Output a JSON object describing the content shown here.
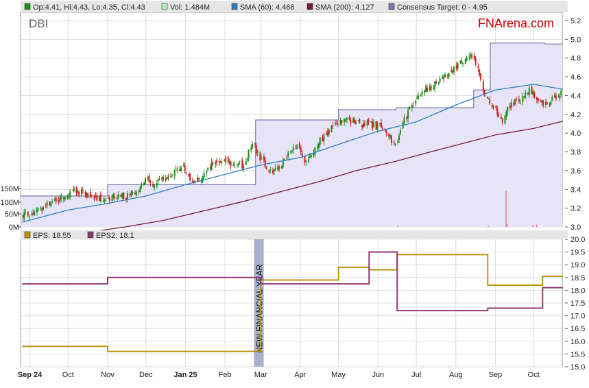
{
  "chart_data": [
    {
      "type": "candlestick",
      "ticker": "DBI",
      "brand": "FNArena.com",
      "legend": {
        "ohlc": "Op:4.41, Hi:4.43, Lo:4.35, Cl:4.43",
        "vol": "Vol: 1.484M",
        "sma60": "SMA (60): 4.468",
        "sma200": "SMA (200): 4.127",
        "target": "Consensus Target: 0 - 4.95"
      },
      "y_ticks": [
        "5.2",
        "5.0",
        "4.8",
        "4.6",
        "4.4",
        "4.2",
        "4.0",
        "3.8",
        "3.6",
        "3.4",
        "3.2",
        "3.0"
      ],
      "ylim": [
        3.0,
        5.2
      ],
      "volume_ticks": [
        "150M",
        "100M",
        "50M",
        "0M"
      ],
      "prices": [
        [
          "2024-08-26",
          3.12
        ],
        [
          "2024-09-02",
          3.15
        ],
        [
          "2024-09-09",
          3.18
        ],
        [
          "2024-09-16",
          3.23
        ],
        [
          "2024-09-23",
          3.28
        ],
        [
          "2024-09-30",
          3.34
        ],
        [
          "2024-10-07",
          3.39
        ],
        [
          "2024-10-14",
          3.37
        ],
        [
          "2024-10-21",
          3.33
        ],
        [
          "2024-10-28",
          3.31
        ],
        [
          "2024-11-04",
          3.3
        ],
        [
          "2024-11-11",
          3.31
        ],
        [
          "2024-11-18",
          3.33
        ],
        [
          "2024-11-25",
          3.37
        ],
        [
          "2024-12-02",
          3.5
        ],
        [
          "2024-12-09",
          3.45
        ],
        [
          "2024-12-16",
          3.52
        ],
        [
          "2024-12-23",
          3.58
        ],
        [
          "2024-12-30",
          3.66
        ],
        [
          "2025-01-06",
          3.52
        ],
        [
          "2025-01-13",
          3.48
        ],
        [
          "2025-01-20",
          3.63
        ],
        [
          "2025-01-27",
          3.7
        ],
        [
          "2025-02-03",
          3.72
        ],
        [
          "2025-02-10",
          3.66
        ],
        [
          "2025-02-17",
          3.66
        ],
        [
          "2025-02-24",
          3.88
        ],
        [
          "2025-03-03",
          3.7
        ],
        [
          "2025-03-10",
          3.59
        ],
        [
          "2025-03-17",
          3.65
        ],
        [
          "2025-03-24",
          3.77
        ],
        [
          "2025-03-31",
          3.85
        ],
        [
          "2025-04-07",
          3.7
        ],
        [
          "2025-04-14",
          3.85
        ],
        [
          "2025-04-21",
          3.96
        ],
        [
          "2025-04-28",
          4.07
        ],
        [
          "2025-05-05",
          4.12
        ],
        [
          "2025-05-12",
          4.14
        ],
        [
          "2025-05-19",
          4.1
        ],
        [
          "2025-05-26",
          4.1
        ],
        [
          "2025-06-02",
          4.07
        ],
        [
          "2025-06-09",
          4.03
        ],
        [
          "2025-06-16",
          3.85
        ],
        [
          "2025-06-23",
          4.14
        ],
        [
          "2025-06-30",
          4.32
        ],
        [
          "2025-07-07",
          4.45
        ],
        [
          "2025-07-14",
          4.5
        ],
        [
          "2025-07-21",
          4.58
        ],
        [
          "2025-07-28",
          4.65
        ],
        [
          "2025-08-04",
          4.72
        ],
        [
          "2025-08-11",
          4.83
        ],
        [
          "2025-08-18",
          4.76
        ],
        [
          "2025-08-25",
          4.39
        ],
        [
          "2025-09-01",
          4.28
        ],
        [
          "2025-09-08",
          4.14
        ],
        [
          "2025-09-15",
          4.32
        ],
        [
          "2025-09-22",
          4.36
        ],
        [
          "2025-09-29",
          4.47
        ],
        [
          "2025-10-06",
          4.36
        ],
        [
          "2025-10-13",
          4.28
        ],
        [
          "2025-10-20",
          4.4
        ],
        [
          "2025-10-24",
          4.43
        ]
      ],
      "sma60": [
        [
          "2024-08-26",
          3.05
        ],
        [
          "2024-10-01",
          3.18
        ],
        [
          "2024-11-01",
          3.25
        ],
        [
          "2024-12-01",
          3.33
        ],
        [
          "2025-01-01",
          3.45
        ],
        [
          "2025-02-01",
          3.56
        ],
        [
          "2025-03-01",
          3.66
        ],
        [
          "2025-04-01",
          3.74
        ],
        [
          "2025-05-01",
          3.88
        ],
        [
          "2025-06-01",
          4.02
        ],
        [
          "2025-07-01",
          4.12
        ],
        [
          "2025-08-01",
          4.3
        ],
        [
          "2025-09-01",
          4.46
        ],
        [
          "2025-10-01",
          4.52
        ],
        [
          "2025-10-24",
          4.468
        ]
      ],
      "sma200": [
        [
          "2024-10-20",
          2.95
        ],
        [
          "2024-11-15",
          3.0
        ],
        [
          "2024-12-15",
          3.07
        ],
        [
          "2025-01-15",
          3.17
        ],
        [
          "2025-02-15",
          3.27
        ],
        [
          "2025-03-15",
          3.37
        ],
        [
          "2025-04-15",
          3.48
        ],
        [
          "2025-05-15",
          3.6
        ],
        [
          "2025-06-15",
          3.7
        ],
        [
          "2025-07-15",
          3.81
        ],
        [
          "2025-08-15",
          3.92
        ],
        [
          "2025-09-01",
          3.98
        ],
        [
          "2025-10-01",
          4.05
        ],
        [
          "2025-10-24",
          4.127
        ]
      ],
      "consensus_target": [
        [
          "2024-08-26",
          3.33
        ],
        [
          "2024-11-01",
          3.45
        ],
        [
          "2025-02-25",
          4.14
        ],
        [
          "2025-05-01",
          4.25
        ],
        [
          "2025-06-15",
          4.27
        ],
        [
          "2025-08-15",
          4.46
        ],
        [
          "2025-08-28",
          4.96
        ],
        [
          "2025-10-10",
          4.95
        ],
        [
          "2025-10-24",
          4.95
        ]
      ],
      "volume_millions": [
        [
          "2025-09-09",
          140
        ],
        [
          "2025-09-10",
          12
        ],
        [
          "2025-09-30",
          8
        ],
        [
          "2025-06-16",
          5
        ],
        [
          "2025-08-26",
          4
        ],
        [
          "2025-10-03",
          10
        ]
      ]
    },
    {
      "type": "line",
      "legend": {
        "eps": "EPS: 18.55",
        "eps2": "EPS2: 18.1"
      },
      "y_ticks": [
        "20.0",
        "19.5",
        "19.0",
        "18.5",
        "18.0",
        "17.5",
        "17.0",
        "16.5",
        "16.0",
        "15.5",
        "15.0"
      ],
      "ylim": [
        15.0,
        20.0
      ],
      "annotation": "NEW FINANCIAL YEAR",
      "series": [
        {
          "name": "EPS",
          "color": "#b8960c",
          "steps": [
            [
              "2024-08-26",
              15.8
            ],
            [
              "2024-11-01",
              15.6
            ],
            [
              "2025-03-01",
              18.4
            ],
            [
              "2025-05-01",
              18.9
            ],
            [
              "2025-05-25",
              18.8
            ],
            [
              "2025-06-16",
              19.4
            ],
            [
              "2025-08-26",
              18.2
            ],
            [
              "2025-10-08",
              18.55
            ],
            [
              "2025-10-24",
              18.55
            ]
          ]
        },
        {
          "name": "EPS2",
          "color": "#8e3a72",
          "steps": [
            [
              "2024-08-26",
              18.25
            ],
            [
              "2024-11-01",
              18.5
            ],
            [
              "2025-03-01",
              18.25
            ],
            [
              "2025-05-25",
              19.5
            ],
            [
              "2025-06-16",
              17.2
            ],
            [
              "2025-08-26",
              17.3
            ],
            [
              "2025-10-08",
              18.1
            ],
            [
              "2025-10-24",
              18.1
            ]
          ]
        }
      ]
    }
  ],
  "x_labels": [
    [
      "2024-09-01",
      "Sep 24",
      true
    ],
    [
      "2024-10-01",
      "Oct",
      false
    ],
    [
      "2024-11-01",
      "Nov",
      false
    ],
    [
      "2024-12-01",
      "Dec",
      false
    ],
    [
      "2025-01-01",
      "Jan 25",
      true
    ],
    [
      "2025-02-01",
      "Feb",
      false
    ],
    [
      "2025-03-01",
      "Mar",
      false
    ],
    [
      "2025-04-01",
      "Apr",
      false
    ],
    [
      "2025-05-01",
      "May",
      false
    ],
    [
      "2025-06-01",
      "Jun",
      false
    ],
    [
      "2025-07-01",
      "Jul",
      false
    ],
    [
      "2025-08-01",
      "Aug",
      false
    ],
    [
      "2025-09-01",
      "Sep",
      false
    ],
    [
      "2025-10-01",
      "Oct",
      false
    ]
  ],
  "colors": {
    "up": "#1a8f1a",
    "down": "#cc2222",
    "sma60": "#2a7fc0",
    "sma200": "#7a1a3a",
    "target": "#7a78b0",
    "target_fill": "#e6e4f6",
    "legend_bg": "#e6e6e6",
    "fy_band": "#a8b0d0"
  }
}
